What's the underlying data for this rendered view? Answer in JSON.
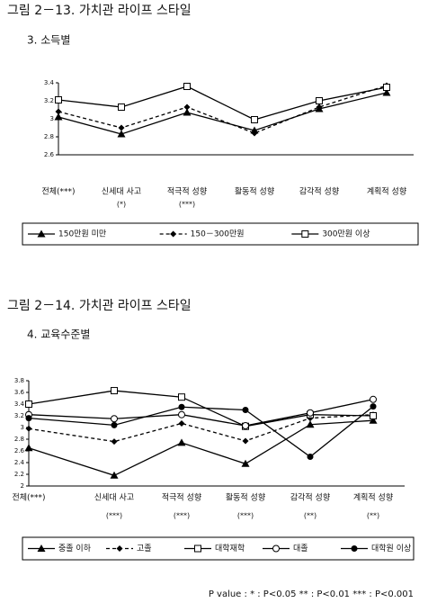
{
  "chart_data": [
    {
      "type": "line",
      "title": "그림 2－13. 가치관 라이프 스타일",
      "subtitle": "3. 소득별",
      "categories": [
        "전체(***)",
        "신세대 사고",
        "적극적 성향",
        "활동적 성향",
        "감각적 성향",
        "계획적 성향"
      ],
      "significance": [
        null,
        "(*)",
        "(***)",
        null,
        null,
        null
      ],
      "ylim": [
        2.6,
        3.4
      ],
      "yticks": [
        2.6,
        2.8,
        3,
        3.2,
        3.4
      ],
      "series": [
        {
          "name": "150만원 미만",
          "color": "#000000",
          "marker": "triangle",
          "dashed": false,
          "values": [
            3.02,
            2.83,
            3.07,
            2.87,
            3.11,
            3.29
          ]
        },
        {
          "name": "150－300만원",
          "color": "#000000",
          "marker": "diamond",
          "dashed": true,
          "values": [
            3.08,
            2.9,
            3.13,
            2.84,
            3.13,
            3.37
          ]
        },
        {
          "name": "300만원 이상",
          "color": "#000000",
          "marker": "square",
          "dashed": false,
          "values": [
            3.21,
            3.13,
            3.36,
            2.99,
            3.2,
            3.35
          ]
        }
      ]
    },
    {
      "type": "line",
      "title": "그림 2－14. 가치관 라이프 스타일",
      "subtitle": "4. 교육수준별",
      "categories": [
        "전체(***)",
        "신세대 사고",
        "적극적 성향",
        "활동적 성향",
        "감각적 성향",
        "계획적 성향"
      ],
      "significance": [
        null,
        "(***)",
        "(***)",
        "(***)",
        "(**)",
        "(**)"
      ],
      "ylim": [
        2,
        3.8
      ],
      "yticks": [
        2,
        2.2,
        2.4,
        2.6,
        2.8,
        3,
        3.2,
        3.4,
        3.6,
        3.8
      ],
      "series": [
        {
          "name": "중졸 이하",
          "color": "#000000",
          "marker": "triangle",
          "dashed": false,
          "values": [
            2.65,
            2.18,
            2.74,
            2.38,
            3.05,
            3.12
          ]
        },
        {
          "name": "고졸",
          "color": "#000000",
          "marker": "diamond",
          "dashed": true,
          "values": [
            2.98,
            2.76,
            3.07,
            2.77,
            3.16,
            3.22
          ]
        },
        {
          "name": "대학재학",
          "color": "#000000",
          "marker": "square",
          "dashed": false,
          "values": [
            3.4,
            3.63,
            3.52,
            3.02,
            3.22,
            3.2
          ]
        },
        {
          "name": "대졸",
          "color": "#000000",
          "marker": "circle",
          "dashed": false,
          "values": [
            3.22,
            3.15,
            3.22,
            3.03,
            3.25,
            3.48
          ]
        },
        {
          "name": "대학원 이상",
          "color": "#000000",
          "marker": "dot",
          "dashed": false,
          "values": [
            3.16,
            3.04,
            3.35,
            3.3,
            2.5,
            3.36
          ]
        }
      ]
    }
  ],
  "footnote": "P value :   * : P<0.05   ** : P<0.01   *** : P<0.001"
}
